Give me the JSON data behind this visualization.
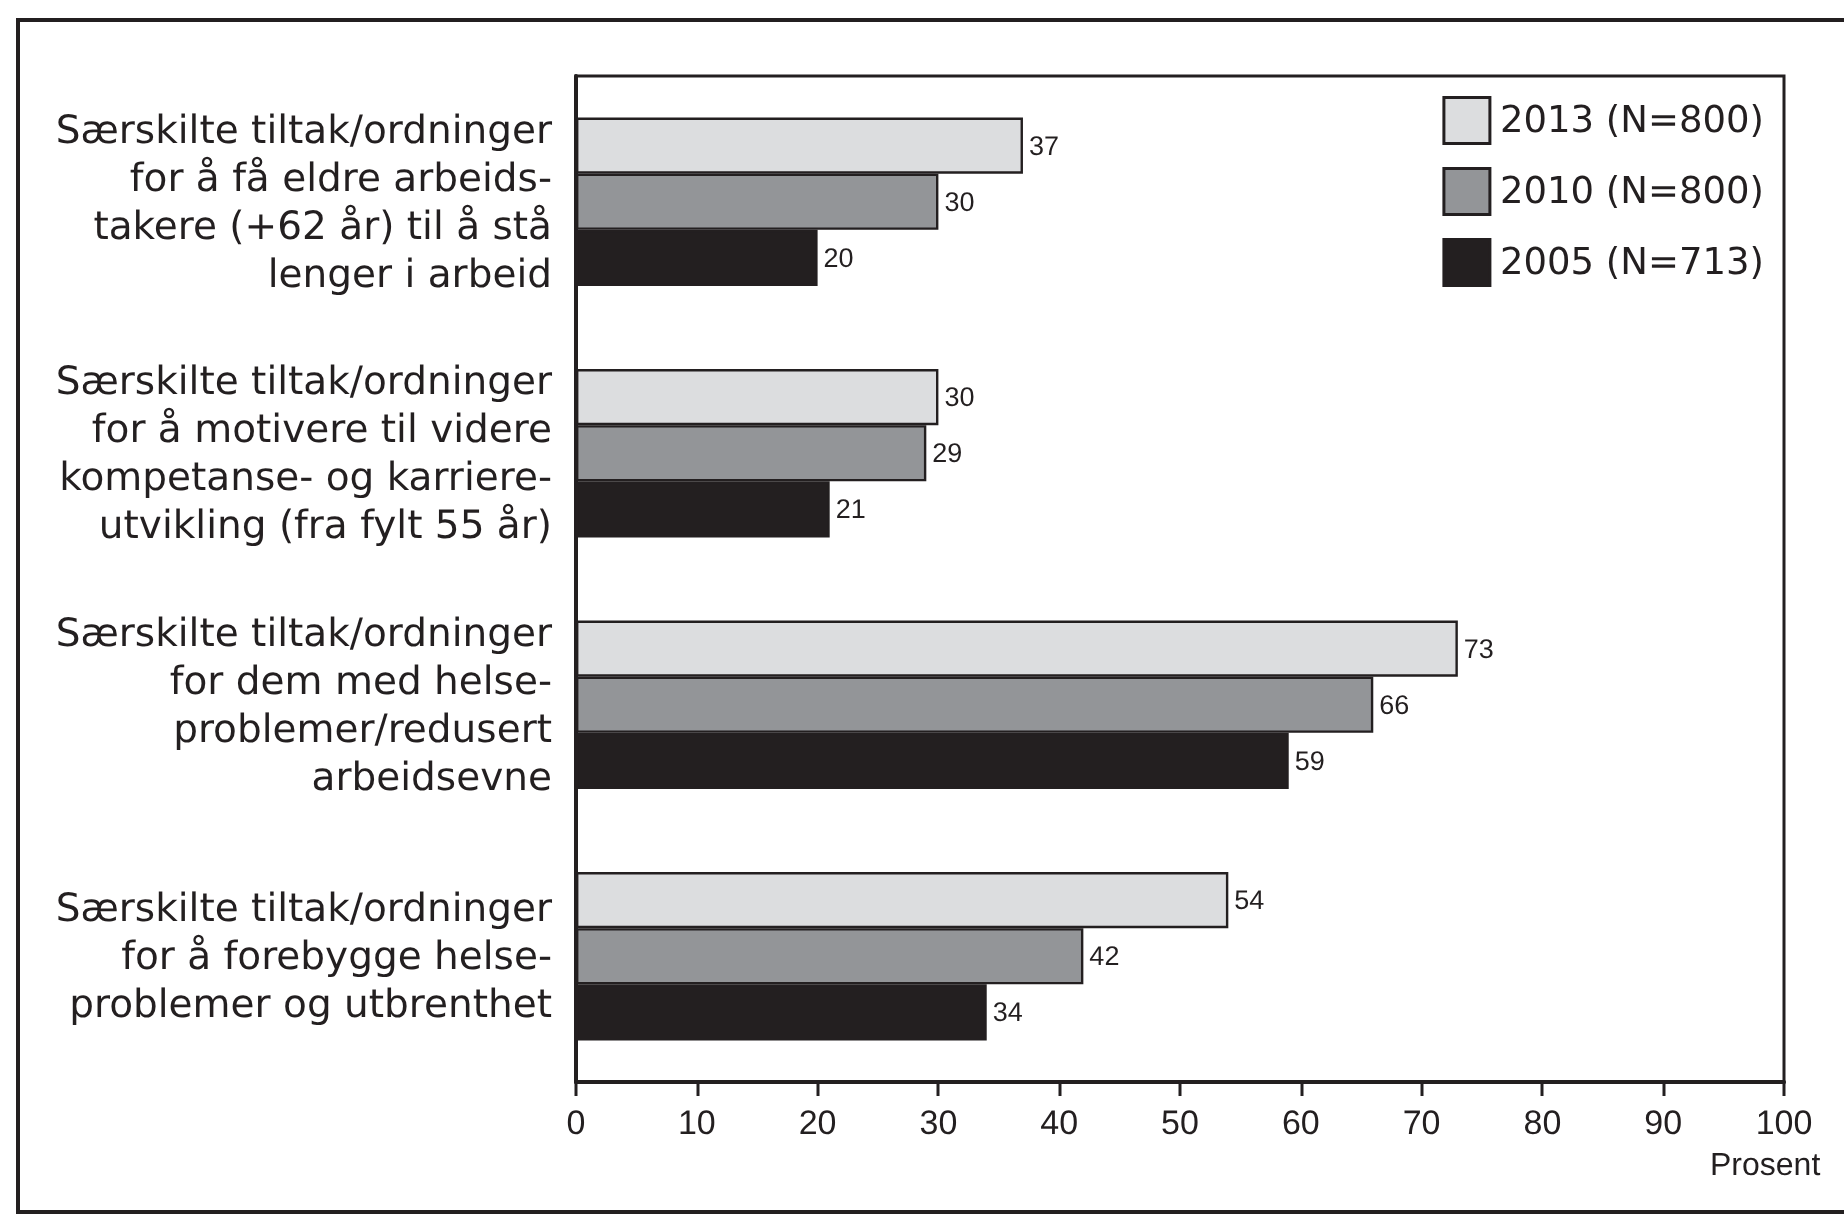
{
  "chart_data": {
    "type": "bar",
    "orientation": "horizontal",
    "categories": [
      "Særskilte tiltak/ordninger\nfor å få eldre arbeids-\ntakere (+62 år) til å stå\nlenger i arbeid",
      "Særskilte tiltak/ordninger\nfor å motivere til videre\nkompetanse- og karriere-\nutvikling (fra fylt 55 år)",
      "Særskilte tiltak/ordninger\nfor dem med helse-\nproblemer/redusert\narbeidsevne",
      "Særskilte tiltak/ordninger\nfor å forebygge helse-\nproblemer og utbrenthet"
    ],
    "series": [
      {
        "name": "2013 (N=800)",
        "color": "#dcdddf",
        "values": [
          37,
          30,
          73,
          54
        ]
      },
      {
        "name": "2010 (N=800)",
        "color": "#939598",
        "values": [
          30,
          29,
          66,
          42
        ]
      },
      {
        "name": "2005 (N=713)",
        "color": "#231f20",
        "values": [
          20,
          21,
          59,
          34
        ]
      }
    ],
    "xlabel": "Prosent",
    "xlim": [
      0,
      100
    ],
    "xticks": [
      0,
      10,
      20,
      30,
      40,
      50,
      60,
      70,
      80,
      90,
      100
    ],
    "data_labels": true,
    "legend": "top right"
  }
}
